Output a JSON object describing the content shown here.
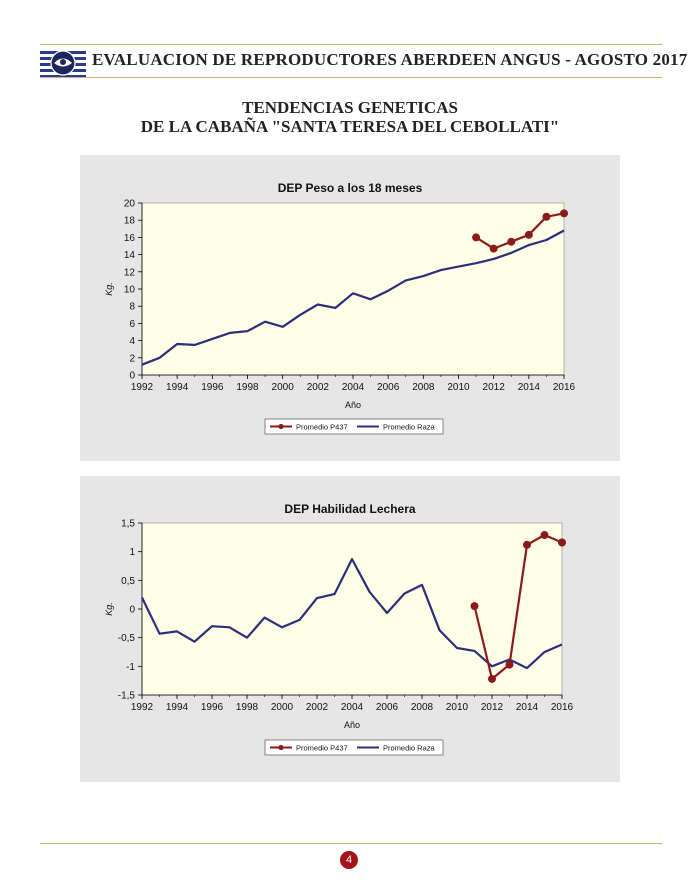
{
  "header": {
    "title": "EVALUACION DE REPRODUCTORES ABERDEEN ANGUS - AGOSTO 2017"
  },
  "page_title": {
    "line1": "TENDENCIAS GENETICAS",
    "line2": "DE LA CABAÑA \"SANTA TERESA DEL CEBOLLATI\""
  },
  "footer": {
    "page_number": "4"
  },
  "colors": {
    "p437": "#8b1a1a",
    "raza": "#2b2e7a",
    "plot_bg": "#ffffe8",
    "panel_bg": "#e6e6e6",
    "accent_rule": "#c9b07a"
  },
  "chart_data": [
    {
      "type": "line",
      "title": "DEP Peso a los 18 meses",
      "xlabel": "Año",
      "ylabel": "Kg.",
      "xlim": [
        1992,
        2016
      ],
      "ylim": [
        0,
        20
      ],
      "x_ticks": [
        1992,
        1994,
        1996,
        1998,
        2000,
        2002,
        2004,
        2006,
        2008,
        2010,
        2012,
        2014,
        2016
      ],
      "y_ticks": [
        0,
        2,
        4,
        6,
        8,
        10,
        12,
        14,
        16,
        18,
        20
      ],
      "y_tick_labels": [
        "0",
        "2",
        "4",
        "6",
        "8",
        "10",
        "12",
        "14",
        "16",
        "18",
        "20"
      ],
      "grid": false,
      "legend": "bottom",
      "series": [
        {
          "name": "Promedio P437",
          "markers": true,
          "x": [
            2011,
            2012,
            2013,
            2014,
            2015,
            2016
          ],
          "values": [
            16.0,
            14.7,
            15.5,
            16.3,
            18.4,
            18.8
          ]
        },
        {
          "name": "Promedio Raza",
          "markers": false,
          "x": [
            1992,
            1993,
            1994,
            1995,
            1996,
            1997,
            1998,
            1999,
            2000,
            2001,
            2002,
            2003,
            2004,
            2005,
            2006,
            2007,
            2008,
            2009,
            2010,
            2011,
            2012,
            2013,
            2014,
            2015,
            2016
          ],
          "values": [
            1.2,
            2.0,
            3.6,
            3.5,
            4.2,
            4.9,
            5.1,
            6.2,
            5.6,
            7.0,
            8.2,
            7.8,
            9.5,
            8.8,
            9.8,
            11.0,
            11.5,
            12.2,
            12.6,
            13.0,
            13.5,
            14.2,
            15.1,
            15.7,
            16.8
          ]
        }
      ]
    },
    {
      "type": "line",
      "title": "DEP Habilidad Lechera",
      "xlabel": "Año",
      "ylabel": "Kg.",
      "xlim": [
        1992,
        2016
      ],
      "ylim": [
        -1.5,
        1.5
      ],
      "x_ticks": [
        1992,
        1994,
        1996,
        1998,
        2000,
        2002,
        2004,
        2006,
        2008,
        2010,
        2012,
        2014,
        2016
      ],
      "y_ticks": [
        -1.5,
        -1,
        -0.5,
        0,
        0.5,
        1,
        1.5
      ],
      "y_tick_labels": [
        "-1,5",
        "-1",
        "-0,5",
        "0",
        "0,5",
        "1",
        "1,5"
      ],
      "grid": false,
      "legend": "bottom",
      "series": [
        {
          "name": "Promedio P437",
          "markers": true,
          "x": [
            2011,
            2012,
            2013,
            2014,
            2015,
            2016
          ],
          "values": [
            0.05,
            -1.22,
            -0.97,
            1.12,
            1.29,
            1.16
          ]
        },
        {
          "name": "Promedio Raza",
          "markers": false,
          "x": [
            1992,
            1993,
            1994,
            1995,
            1996,
            1997,
            1998,
            1999,
            2000,
            2001,
            2002,
            2003,
            2004,
            2005,
            2006,
            2007,
            2008,
            2009,
            2010,
            2011,
            2012,
            2013,
            2014,
            2015,
            2016
          ],
          "values": [
            0.2,
            -0.43,
            -0.39,
            -0.57,
            -0.3,
            -0.32,
            -0.5,
            -0.15,
            -0.32,
            -0.19,
            0.19,
            0.26,
            0.87,
            0.3,
            -0.07,
            0.27,
            0.42,
            -0.37,
            -0.68,
            -0.73,
            -1.0,
            -0.88,
            -1.03,
            -0.75,
            -0.62
          ]
        }
      ]
    }
  ]
}
